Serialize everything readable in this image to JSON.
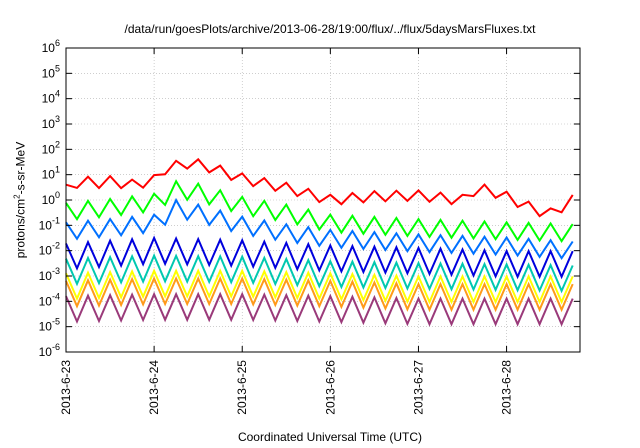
{
  "chart_data": {
    "type": "line",
    "title": "/data/run/goesPlots/archive/2013-06-28/19:00/flux/../flux/5daysMarsFluxes.txt",
    "xlabel": "Coordinated Universal Time (UTC)",
    "ylabel": "protons/cm2-s-sr-MeV",
    "yscale": "log",
    "ylim": [
      1e-06,
      1000000.0
    ],
    "xlim": [
      "2013-06-23T00:00",
      "2013-06-28T20:00"
    ],
    "grid": "major ticks only",
    "y_ticks": [
      {
        "base": "10",
        "exp": "-6"
      },
      {
        "base": "10",
        "exp": "-5"
      },
      {
        "base": "10",
        "exp": "-4"
      },
      {
        "base": "10",
        "exp": "-3"
      },
      {
        "base": "10",
        "exp": "-2"
      },
      {
        "base": "10",
        "exp": "-1"
      },
      {
        "base": "10",
        "exp": "0"
      },
      {
        "base": "10",
        "exp": "1"
      },
      {
        "base": "10",
        "exp": "2"
      },
      {
        "base": "10",
        "exp": "3"
      },
      {
        "base": "10",
        "exp": "4"
      },
      {
        "base": "10",
        "exp": "5"
      },
      {
        "base": "10",
        "exp": "6"
      }
    ],
    "x_ticks": [
      {
        "label": "2013-6-23",
        "date": "2013-06-23T00:00"
      },
      {
        "label": "2013-6-24",
        "date": "2013-06-24T00:00"
      },
      {
        "label": "2013-6-25",
        "date": "2013-06-25T00:00"
      },
      {
        "label": "2013-6-26",
        "date": "2013-06-26T00:00"
      },
      {
        "label": "2013-6-27",
        "date": "2013-06-27T00:00"
      },
      {
        "label": "2013-6-28",
        "date": "2013-06-28T00:00"
      }
    ],
    "series": [
      {
        "color": "#ff0000",
        "points": [
          [
            "2013-06-23T00:00",
            2.5
          ],
          [
            "2013-06-23T04:00",
            6
          ],
          [
            "2013-06-23T08:00",
            4.5
          ],
          [
            "2013-06-23T12:00",
            5.5
          ],
          [
            "2013-06-23T18:00",
            4
          ],
          [
            "2013-06-24T00:00",
            6
          ],
          [
            "2013-06-24T02:00",
            15
          ],
          [
            "2013-06-24T06:00",
            22
          ],
          [
            "2013-06-24T10:00",
            30
          ],
          [
            "2013-06-24T16:00",
            18
          ],
          [
            "2013-06-25T00:00",
            7
          ],
          [
            "2013-06-25T12:00",
            3
          ],
          [
            "2013-06-26T00:00",
            1
          ],
          [
            "2013-06-26T12:00",
            1.4
          ],
          [
            "2013-06-27T00:00",
            1.5
          ],
          [
            "2013-06-27T12:00",
            1
          ],
          [
            "2013-06-27T16:00",
            3
          ],
          [
            "2013-06-27T22:00",
            1.8
          ],
          [
            "2013-06-28T08:00",
            0.4
          ],
          [
            "2013-06-28T14:00",
            0.25
          ],
          [
            "2013-06-28T16:00",
            1.1
          ],
          [
            "2013-06-28T20:00",
            0.9
          ]
        ]
      },
      {
        "color": "#00ff00",
        "points": [
          [
            "2013-06-23T00:00",
            0.35
          ],
          [
            "2013-06-23T12:00",
            0.5
          ],
          [
            "2013-06-24T00:00",
            0.8
          ],
          [
            "2013-06-24T06:00",
            2.5
          ],
          [
            "2013-06-24T12:00",
            2
          ],
          [
            "2013-06-25T00:00",
            0.6
          ],
          [
            "2013-06-25T12:00",
            0.3
          ],
          [
            "2013-06-26T00:00",
            0.12
          ],
          [
            "2013-06-27T00:00",
            0.08
          ],
          [
            "2013-06-28T00:00",
            0.06
          ],
          [
            "2013-06-28T20:00",
            0.05
          ]
        ]
      },
      {
        "color": "#0070ff",
        "points": [
          [
            "2013-06-23T00:00",
            0.06
          ],
          [
            "2013-06-23T12:00",
            0.08
          ],
          [
            "2013-06-24T00:00",
            0.12
          ],
          [
            "2013-06-24T06:00",
            0.45
          ],
          [
            "2013-06-24T12:00",
            0.3
          ],
          [
            "2013-06-25T00:00",
            0.1
          ],
          [
            "2013-06-25T12:00",
            0.05
          ],
          [
            "2013-06-26T00:00",
            0.03
          ],
          [
            "2013-06-27T00:00",
            0.02
          ],
          [
            "2013-06-28T00:00",
            0.015
          ],
          [
            "2013-06-28T20:00",
            0.01
          ]
        ]
      },
      {
        "color": "#0000dd",
        "points": [
          [
            "2013-06-23T00:00",
            0.006
          ],
          [
            "2013-06-24T00:00",
            0.01
          ],
          [
            "2013-06-25T00:00",
            0.008
          ],
          [
            "2013-06-26T00:00",
            0.005
          ],
          [
            "2013-06-27T00:00",
            0.004
          ],
          [
            "2013-06-28T00:00",
            0.003
          ],
          [
            "2013-06-28T20:00",
            0.003
          ]
        ]
      },
      {
        "color": "#00c8b0",
        "points": [
          [
            "2013-06-23T00:00",
            0.0015
          ],
          [
            "2013-06-24T00:00",
            0.002
          ],
          [
            "2013-06-25T00:00",
            0.0018
          ],
          [
            "2013-06-26T00:00",
            0.0012
          ],
          [
            "2013-06-27T00:00",
            0.001
          ],
          [
            "2013-06-28T00:00",
            0.0009
          ],
          [
            "2013-06-28T20:00",
            0.0008
          ]
        ]
      },
      {
        "color": "#ffff00",
        "points": [
          [
            "2013-06-23T00:00",
            0.0004
          ],
          [
            "2013-06-24T00:00",
            0.0005
          ],
          [
            "2013-06-25T00:00",
            0.0005
          ],
          [
            "2013-06-26T00:00",
            0.0004
          ],
          [
            "2013-06-27T00:00",
            0.0003
          ],
          [
            "2013-06-28T00:00",
            0.0003
          ],
          [
            "2013-06-28T20:00",
            0.0003
          ]
        ]
      },
      {
        "color": "#ff9a1a",
        "points": [
          [
            "2013-06-23T00:00",
            0.0002
          ],
          [
            "2013-06-24T00:00",
            0.00025
          ],
          [
            "2013-06-25T00:00",
            0.00025
          ],
          [
            "2013-06-26T00:00",
            0.0002
          ],
          [
            "2013-06-27T00:00",
            0.00015
          ],
          [
            "2013-06-28T00:00",
            0.00015
          ],
          [
            "2013-06-28T20:00",
            0.00015
          ]
        ]
      },
      {
        "color": "#9a3a7a",
        "points": [
          [
            "2013-06-23T00:00",
            5e-05
          ],
          [
            "2013-06-24T00:00",
            6e-05
          ],
          [
            "2013-06-25T00:00",
            6e-05
          ],
          [
            "2013-06-26T00:00",
            5e-05
          ],
          [
            "2013-06-27T00:00",
            4e-05
          ],
          [
            "2013-06-28T00:00",
            4e-05
          ],
          [
            "2013-06-28T20:00",
            4e-05
          ]
        ]
      }
    ]
  }
}
